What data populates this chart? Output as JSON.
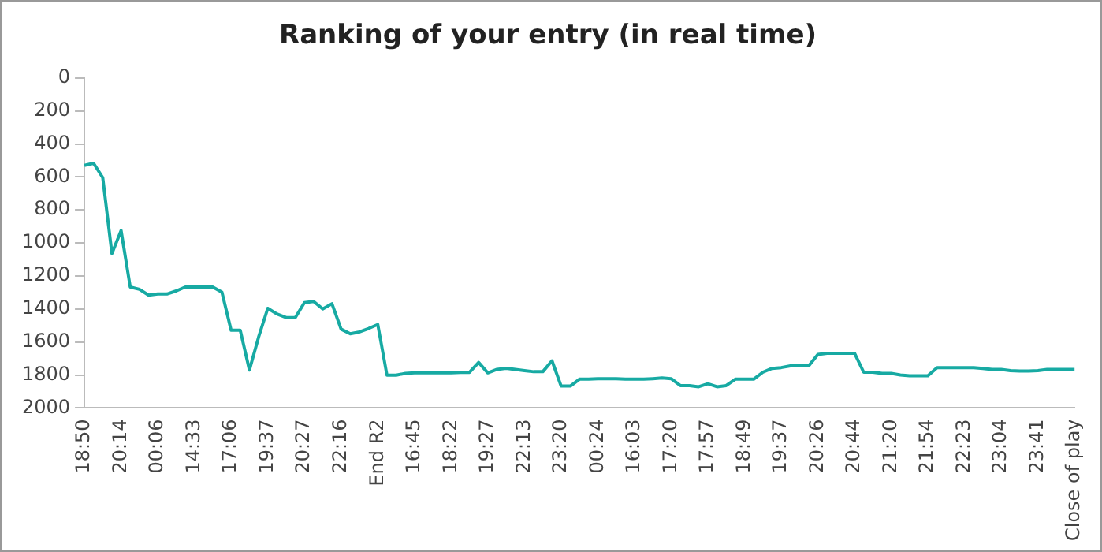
{
  "chart_data": {
    "type": "line",
    "title": "Ranking of your entry (in real time)",
    "categories": [
      "18:50",
      null,
      null,
      null,
      "20:14",
      null,
      null,
      null,
      "00:06",
      null,
      null,
      null,
      "14:33",
      null,
      null,
      null,
      "17:06",
      null,
      null,
      null,
      "19:37",
      null,
      null,
      null,
      "20:27",
      null,
      null,
      null,
      "22:16",
      null,
      null,
      null,
      "End R2",
      null,
      null,
      null,
      "16:45",
      null,
      null,
      null,
      "18:22",
      null,
      null,
      null,
      "19:27",
      null,
      null,
      null,
      "22:13",
      null,
      null,
      null,
      "23:20",
      null,
      null,
      null,
      "00:24",
      null,
      null,
      null,
      "16:03",
      null,
      null,
      null,
      "17:20",
      null,
      null,
      null,
      "17:57",
      null,
      null,
      null,
      "18:49",
      null,
      null,
      null,
      "19:37",
      null,
      null,
      null,
      "20:26",
      null,
      null,
      null,
      "20:44",
      null,
      null,
      null,
      "21:20",
      null,
      null,
      null,
      "21:54",
      null,
      null,
      null,
      "22:23",
      null,
      null,
      null,
      "23:04",
      null,
      null,
      null,
      "23:41",
      null,
      null,
      null,
      "Close of play"
    ],
    "series": [
      {
        "color": "#17aaa3",
        "values": [
          530,
          517,
          604,
          1064,
          925,
          1267,
          1281,
          1316,
          1309,
          1309,
          1291,
          1267,
          1267,
          1267,
          1267,
          1298,
          1529,
          1529,
          1770,
          1570,
          1396,
          1430,
          1452,
          1452,
          1361,
          1354,
          1400,
          1368,
          1522,
          1550,
          1539,
          1518,
          1494,
          1801,
          1801,
          1790,
          1787,
          1787,
          1787,
          1787,
          1787,
          1784,
          1784,
          1724,
          1787,
          1766,
          1759,
          1766,
          1773,
          1780,
          1780,
          1714,
          1867,
          1867,
          1825,
          1825,
          1822,
          1822,
          1822,
          1825,
          1825,
          1825,
          1822,
          1818,
          1822,
          1864,
          1864,
          1871,
          1853,
          1871,
          1864,
          1825,
          1825,
          1825,
          1783,
          1760,
          1755,
          1745,
          1745,
          1745,
          1675,
          1668,
          1668,
          1668,
          1668,
          1783,
          1783,
          1790,
          1790,
          1800,
          1804,
          1804,
          1804,
          1755,
          1755,
          1755,
          1755,
          1755,
          1760,
          1766,
          1766,
          1773,
          1776,
          1776,
          1773,
          1766,
          1766,
          1766,
          1766
        ]
      }
    ],
    "ylim": [
      2000,
      0
    ],
    "yticks": [
      0,
      200,
      400,
      600,
      800,
      1000,
      1200,
      1400,
      1600,
      1800,
      2000
    ],
    "grid": false,
    "legend": false,
    "marker": "none",
    "line_style": "solid"
  }
}
